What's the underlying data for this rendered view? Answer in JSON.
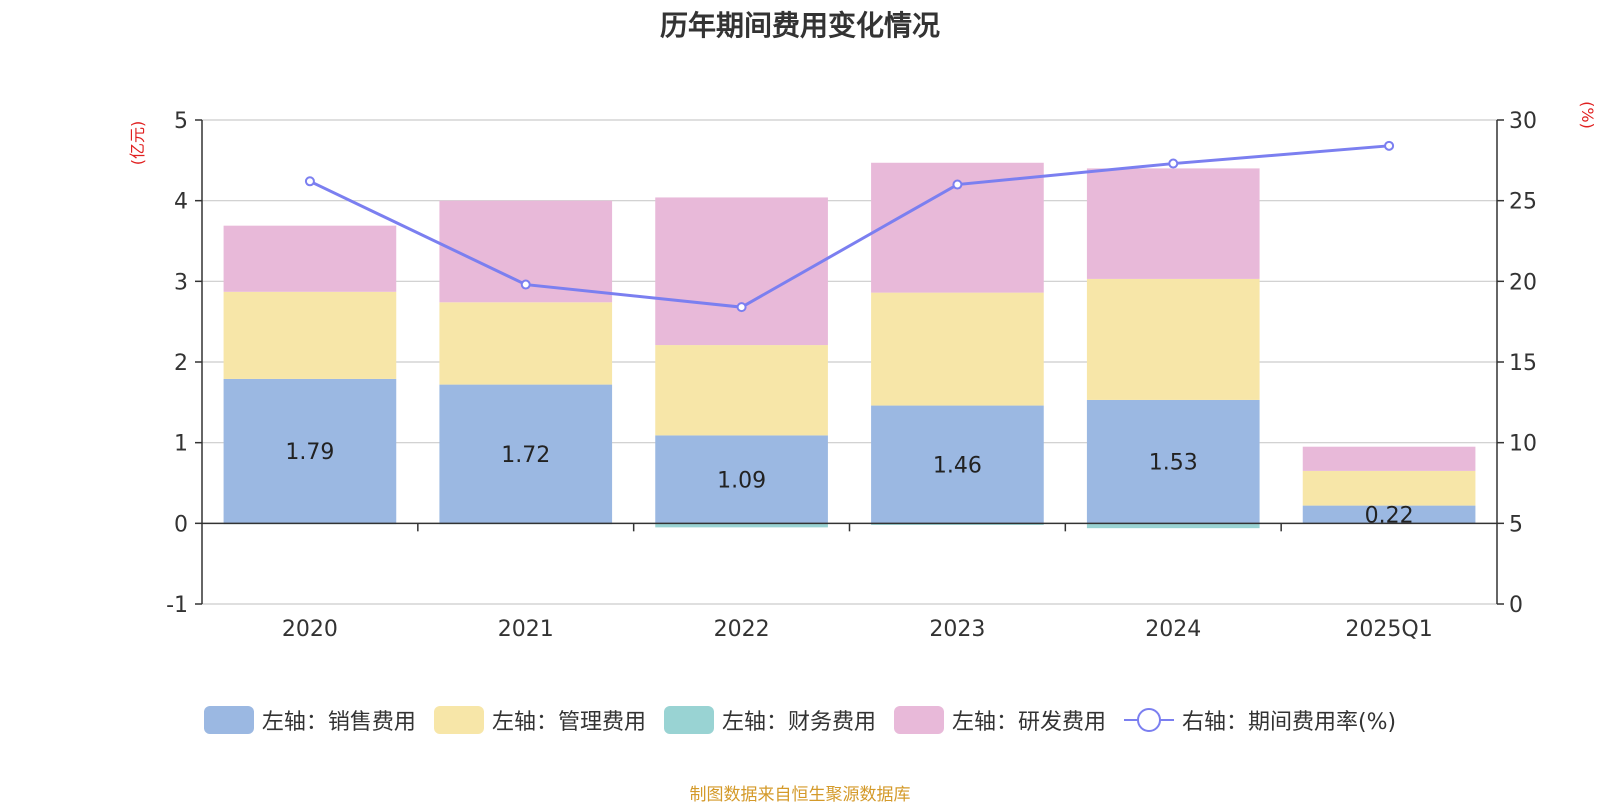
{
  "chart_data": {
    "type": "bar",
    "title": "历年期间费用变化情况",
    "categories": [
      "2020",
      "2021",
      "2022",
      "2023",
      "2024",
      "2025Q1"
    ],
    "left_axis": {
      "label": "(亿元)",
      "ylim": [
        -1,
        5
      ],
      "ticks": [
        "-1",
        "0",
        "1",
        "2",
        "3",
        "4",
        "5"
      ]
    },
    "right_axis": {
      "label": "(%)",
      "ylim": [
        0,
        30
      ],
      "ticks": [
        "0",
        "5",
        "10",
        "15",
        "20",
        "25",
        "30"
      ]
    },
    "series": [
      {
        "name": "左轴：销售费用",
        "axis": "left",
        "stack": true,
        "color": "#9bb8e2",
        "values": [
          1.79,
          1.72,
          1.09,
          1.46,
          1.53,
          0.22
        ],
        "labels": [
          "1.79",
          "1.72",
          "1.09",
          "1.46",
          "1.53",
          "0.22"
        ]
      },
      {
        "name": "左轴：管理费用",
        "axis": "left",
        "stack": true,
        "color": "#f7e6a8",
        "values": [
          1.08,
          1.02,
          1.12,
          1.4,
          1.5,
          0.43
        ]
      },
      {
        "name": "左轴：财务费用",
        "axis": "left",
        "stack": true,
        "color": "#99d3d3",
        "values": [
          -0.01,
          -0.01,
          -0.05,
          -0.02,
          -0.06,
          0.0
        ]
      },
      {
        "name": "左轴：研发费用",
        "axis": "left",
        "stack": true,
        "color": "#e8b9d9",
        "values": [
          0.82,
          1.26,
          1.83,
          1.61,
          1.37,
          0.3
        ]
      },
      {
        "name": "右轴：期间费用率(%)",
        "axis": "right",
        "type": "line",
        "color": "#7b7ff0",
        "values": [
          26.2,
          19.8,
          18.4,
          26.0,
          27.3,
          28.4
        ]
      }
    ],
    "grid": true,
    "legend": "bottom"
  },
  "source_note": "制图数据来自恒生聚源数据库"
}
